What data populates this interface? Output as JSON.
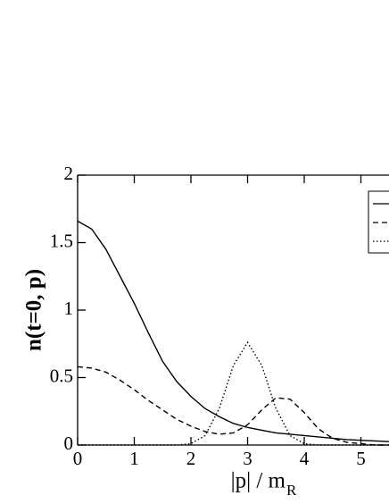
{
  "chart_data": {
    "type": "line",
    "y_label": "n(t=0, p)",
    "x_label": "|p| / m",
    "x_label_sub": "R",
    "x": [
      0,
      0.25,
      0.5,
      0.75,
      1,
      1.25,
      1.5,
      1.75,
      2,
      2.25,
      2.5,
      2.75,
      3,
      3.25,
      3.5,
      3.75,
      4,
      4.25,
      4.5,
      4.75,
      5,
      5.25,
      5.5
    ],
    "series": [
      {
        "color": "#000000",
        "dash": "solid",
        "values": [
          1.66,
          1.6,
          1.45,
          1.25,
          1.05,
          0.83,
          0.62,
          0.47,
          0.36,
          0.27,
          0.21,
          0.16,
          0.13,
          0.11,
          0.09,
          0.08,
          0.07,
          0.06,
          0.05,
          0.04,
          0.035,
          0.03,
          0.025
        ]
      },
      {
        "color": "#000000",
        "dash": "dashed",
        "values": [
          0.58,
          0.57,
          0.54,
          0.48,
          0.41,
          0.33,
          0.26,
          0.19,
          0.14,
          0.1,
          0.08,
          0.09,
          0.15,
          0.26,
          0.35,
          0.34,
          0.24,
          0.12,
          0.05,
          0.02,
          0.01,
          0,
          0
        ]
      },
      {
        "color": "#000000",
        "dash": "dotted",
        "values": [
          0,
          0,
          0,
          0,
          0,
          0,
          0,
          0,
          0.01,
          0.07,
          0.27,
          0.59,
          0.76,
          0.59,
          0.27,
          0.07,
          0.01,
          0,
          0,
          0,
          0,
          0,
          0
        ]
      }
    ],
    "xlim": [
      0,
      5.5
    ],
    "xticks": [
      0,
      1,
      2,
      3,
      4,
      5
    ],
    "ylim": [
      0,
      2
    ],
    "yticks": [
      0,
      0.5,
      1,
      1.5,
      2
    ]
  }
}
